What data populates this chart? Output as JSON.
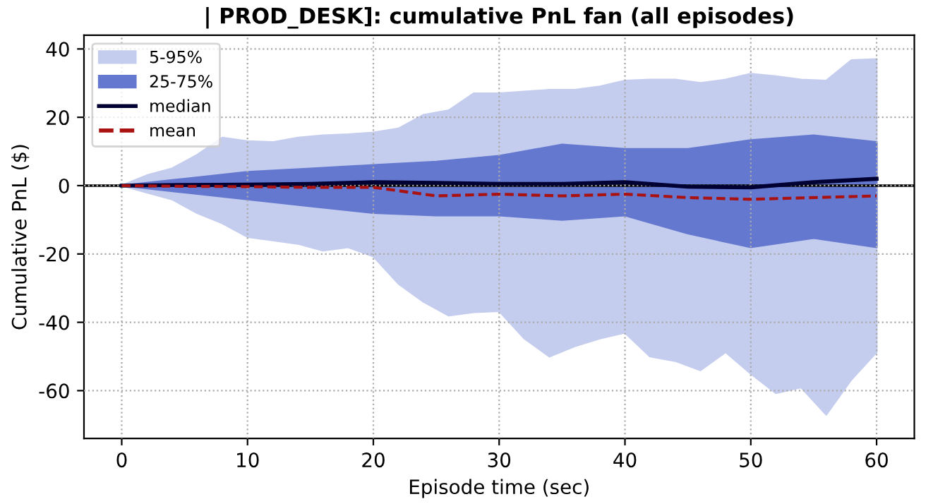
{
  "chart_data": {
    "type": "line",
    "title": "| PROD_DESK]: cumulative PnL fan (all episodes)",
    "xlabel": "Episode time (sec)",
    "ylabel": "Cumulative PnL ($)",
    "xlim": [
      -3,
      63
    ],
    "ylim": [
      -74,
      44
    ],
    "xticks": [
      0,
      10,
      20,
      30,
      40,
      50,
      60
    ],
    "yticks": [
      -60,
      -40,
      -20,
      0,
      20,
      40
    ],
    "grid": true,
    "legend": "top left",
    "ref_lines": [
      {
        "axis": "y",
        "value": 0,
        "color": "#000000",
        "line_style": "solid"
      }
    ],
    "series": [
      {
        "name": "5-95%",
        "color": "#c5cdee",
        "x": [
          0,
          2,
          4,
          6,
          8,
          10,
          12,
          14,
          16,
          18,
          20,
          22,
          24,
          26,
          28,
          30,
          32,
          34,
          36,
          38,
          40,
          42,
          44,
          46,
          48,
          50,
          52,
          54,
          56,
          58,
          60
        ],
        "values": [
          null,
          null,
          null,
          null,
          null,
          null,
          null,
          null,
          null,
          null,
          null,
          null,
          null,
          null,
          null,
          null,
          null,
          null,
          null,
          null,
          null,
          null,
          null,
          null,
          null,
          null,
          null,
          null,
          null,
          null,
          null
        ],
        "upper": [
          0,
          3,
          5,
          9,
          14,
          13,
          12.7,
          14,
          14.7,
          15,
          15.5,
          16.7,
          20.7,
          22,
          27,
          27,
          27.5,
          28,
          28,
          29,
          30.7,
          31,
          31,
          30,
          31,
          32.7,
          32,
          31,
          30.7,
          36.7,
          37
        ],
        "lower": [
          0,
          -2,
          -4,
          -8,
          -11,
          -15,
          -16,
          -17,
          -19,
          -18,
          -20.7,
          -28.7,
          -34,
          -38,
          -37,
          -36.7,
          -44.7,
          -50,
          -47,
          -44.7,
          -43,
          -50,
          -51.3,
          -54,
          -48.7,
          -55,
          -60.7,
          -59,
          -67,
          -56.7,
          -48.7
        ]
      },
      {
        "name": "25-75%",
        "color": "#6478cf",
        "x": [
          0,
          5,
          10,
          15,
          20,
          25,
          30,
          35,
          40,
          45,
          50,
          55,
          60
        ],
        "values": [
          null,
          null,
          null,
          null,
          null,
          null,
          null,
          null,
          null,
          null,
          null,
          null,
          null
        ],
        "upper": [
          0,
          2,
          4,
          5,
          6,
          7,
          8.7,
          12,
          10.7,
          10.7,
          13.3,
          14.7,
          12.7
        ],
        "lower": [
          0,
          -2,
          -4,
          -6,
          -8,
          -8.7,
          -8.7,
          -10,
          -8.7,
          -14,
          -18,
          -15.3,
          -18
        ]
      },
      {
        "name": "median",
        "type": "line",
        "color": "#000033",
        "line_style": "solid",
        "x": [
          0,
          5,
          10,
          15,
          20,
          25,
          30,
          35,
          40,
          45,
          50,
          55,
          60
        ],
        "values": [
          0,
          0.2,
          0.3,
          0.5,
          1,
          0.8,
          0.5,
          0.5,
          1,
          -0.3,
          -0.5,
          1,
          2
        ]
      },
      {
        "name": "mean",
        "type": "line",
        "color": "#aa1111",
        "line_style": "dashed",
        "x": [
          0,
          5,
          10,
          15,
          20,
          25,
          30,
          35,
          40,
          45,
          50,
          55,
          60
        ],
        "values": [
          0,
          -0.2,
          -0.3,
          -0.5,
          -0.5,
          -3,
          -2.5,
          -3,
          -2.5,
          -3.5,
          -4,
          -3.5,
          -3
        ]
      }
    ]
  }
}
